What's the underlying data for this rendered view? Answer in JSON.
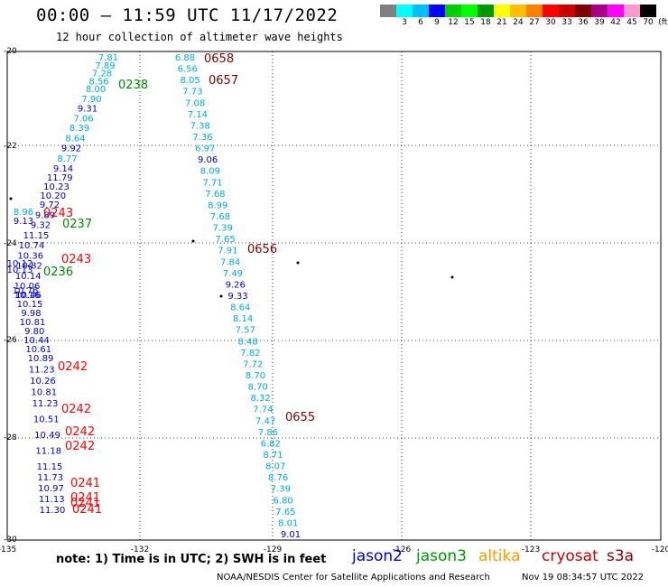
{
  "header": {
    "title": "00:00 – 11:59 UTC 11/17/2022",
    "subtitle": "12 hour collection of altimeter wave heights"
  },
  "legend_scale": {
    "colors": [
      "#808080",
      "#00ffff",
      "#00bfff",
      "#0000ff",
      "#00d000",
      "#00ff00",
      "#009900",
      "#ffff00",
      "#ffbf00",
      "#ff8000",
      "#ff0000",
      "#cc0000",
      "#800000",
      "#aa0088",
      "#ff00ff",
      "#ff99cc",
      "#000000"
    ],
    "labels": [
      "3",
      "6",
      "9",
      "12",
      "15",
      "18",
      "21",
      "24",
      "27",
      "30",
      "33",
      "36",
      "39",
      "42",
      "45",
      "70",
      "(ft)"
    ]
  },
  "axes": {
    "lat_labels": [
      "-20",
      "-22",
      "-24",
      "-26",
      "-28",
      "-30"
    ],
    "lon_labels": [
      "-135",
      "-132",
      "-129",
      "-126",
      "-123",
      "-120"
    ]
  },
  "passes": [
    {
      "id": "0658",
      "color": "#800000"
    },
    {
      "id": "0657",
      "color": "#800000"
    },
    {
      "id": "0238",
      "color": "#008800"
    },
    {
      "id": "0243",
      "color": "#ff0000"
    },
    {
      "id": "0237",
      "color": "#008800"
    },
    {
      "id": "0656",
      "color": "#800000"
    },
    {
      "id": "0243",
      "color": "#ff0000"
    },
    {
      "id": "0236",
      "color": "#008800"
    },
    {
      "id": "0242",
      "color": "#ff0000"
    },
    {
      "id": "0242",
      "color": "#ff0000"
    },
    {
      "id": "0242",
      "color": "#ff0000"
    },
    {
      "id": "0242",
      "color": "#ff0000"
    },
    {
      "id": "0655",
      "color": "#800000"
    },
    {
      "id": "0241",
      "color": "#ff0000"
    },
    {
      "id": "0241",
      "color": "#ff0000"
    },
    {
      "id": "0241",
      "color": "#ff0000"
    },
    {
      "id": "0241",
      "color": "#ff0000"
    }
  ],
  "track_a_values": [
    "6.88",
    "6.56",
    "8.05",
    "7.73",
    "7.08",
    "7.14",
    "7.38",
    "7.36",
    "6.97",
    "9.06",
    "8.09",
    "7.71",
    "7.68",
    "8.99",
    "7.68",
    "7.39",
    "7.65",
    "7.91",
    "7.84",
    "7.49",
    "9.26",
    "9.33",
    "8.64",
    "8.14",
    "7.57",
    "8.48",
    "7.82",
    "7.72",
    "8.70",
    "8.70",
    "8.32",
    "7.74",
    "7.47",
    "7.86",
    "6.82",
    "8.71",
    "8.07",
    "8.76",
    "7.39",
    "6.80",
    "7.65",
    "8.01",
    "9.01"
  ],
  "track_b_values": [
    "7.81",
    "7.89",
    "7.28",
    "8.56",
    "8.00",
    "7.90",
    "9.31",
    "7.06",
    "8.39",
    "8.64",
    "9.92",
    "8.77",
    "9.14",
    "11.79",
    "10.23",
    "10.20",
    "9.72",
    "9.89",
    "9.32",
    "11.15",
    "10.74",
    "10.36",
    "10.82",
    "10.14",
    "10.06",
    "10.46",
    "10.15",
    "9.98",
    "10.81",
    "9.80",
    "10.44",
    "10.61",
    "10.89",
    "11.23",
    "10.26",
    "10.81",
    "11.23",
    "10.51",
    "10.49",
    "11.18",
    "11.15",
    "11.73",
    "10.97",
    "11.13",
    "11.30"
  ],
  "track_b_left_values": [
    "8.96",
    "9.13",
    "10.12",
    "10.13",
    "10.76",
    "10.16"
  ],
  "footer": {
    "note": "note:  1) Time is in UTC;  2) SWH is in feet",
    "satellites": [
      {
        "name": "jason2",
        "color": "#0000cc"
      },
      {
        "name": "jason3",
        "color": "#009900"
      },
      {
        "name": "altika",
        "color": "#ff9900"
      },
      {
        "name": "cryosat",
        "color": "#cc0000"
      },
      {
        "name": "s3a",
        "color": "#800000"
      }
    ],
    "credit": "NOAA/NESDIS Center for Satellite Applications and Research",
    "timestamp": "Nov 19 08:34:57 UTC 2022"
  }
}
